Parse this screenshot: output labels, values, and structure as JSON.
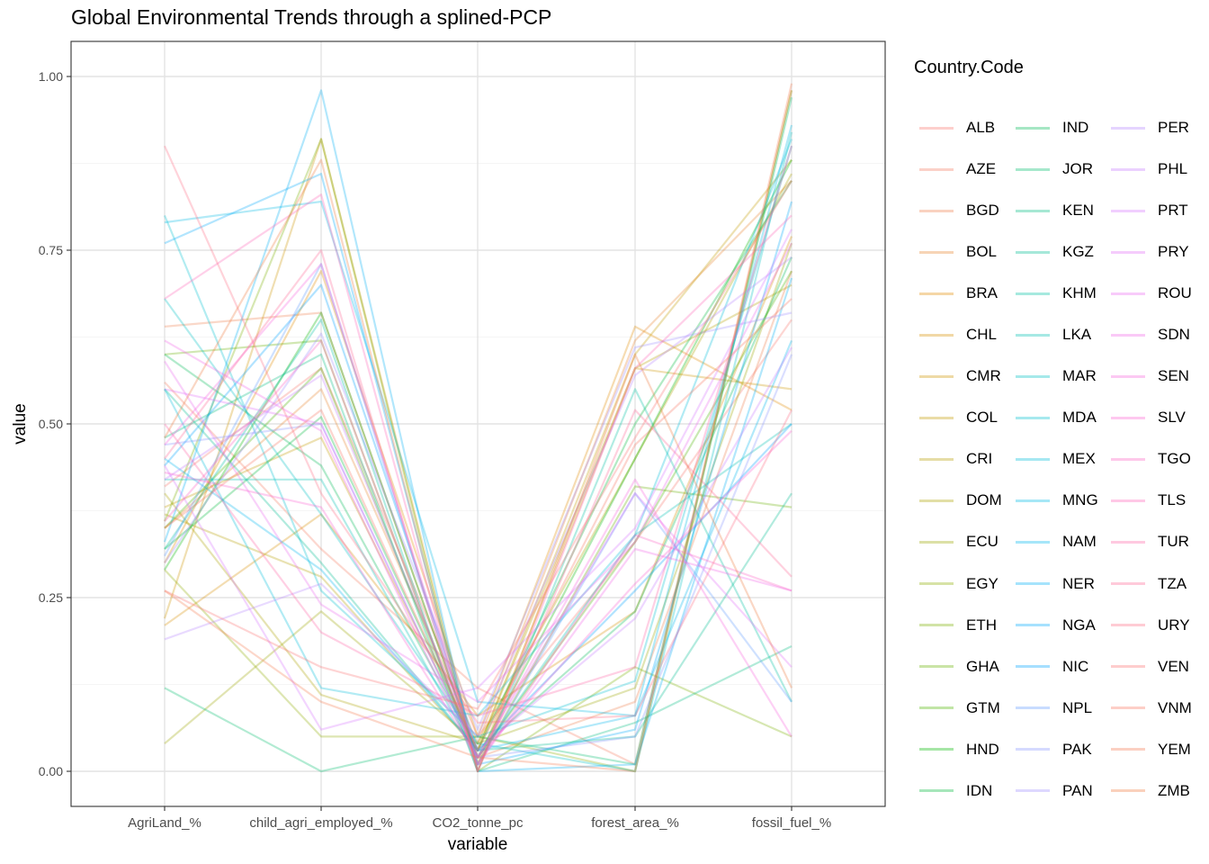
{
  "chart_data": {
    "type": "line",
    "title": "Global Environmental Trends through a splined-PCP",
    "xlabel": "variable",
    "ylabel": "value",
    "categories": [
      "AgriLand_%",
      "child_agri_employed_%",
      "CO2_tonne_pc",
      "forest_area_%",
      "fossil_fuel_%"
    ],
    "ylim": [
      0,
      1
    ],
    "yticks": [
      "0.00",
      "0.25",
      "0.50",
      "0.75",
      "1.00"
    ],
    "grid": true,
    "legend_position": "right",
    "legend_title": "Country.Code",
    "line_opacity": 0.3,
    "series": [
      {
        "name": "ALB",
        "color": "#F8766D",
        "values": [
          0.41,
          0.58,
          0.05,
          0.33,
          0.65
        ]
      },
      {
        "name": "AZE",
        "color": "#F47A61",
        "values": [
          0.56,
          0.32,
          0.12,
          0.01,
          0.98
        ]
      },
      {
        "name": "BGD",
        "color": "#EF7F4B",
        "values": [
          0.64,
          0.66,
          0.02,
          0.1,
          0.72
        ]
      },
      {
        "name": "BOL",
        "color": "#E8852F",
        "values": [
          0.35,
          0.55,
          0.04,
          0.62,
          0.85
        ]
      },
      {
        "name": "BRA",
        "color": "#E28A00",
        "values": [
          0.3,
          0.72,
          0.05,
          0.64,
          0.52
        ]
      },
      {
        "name": "CHL",
        "color": "#D89000",
        "values": [
          0.21,
          0.37,
          0.08,
          0.23,
          0.77
        ]
      },
      {
        "name": "CMR",
        "color": "#CD9600",
        "values": [
          0.22,
          0.91,
          0.01,
          0.58,
          0.55
        ]
      },
      {
        "name": "COL",
        "color": "#C29A00",
        "values": [
          0.38,
          0.48,
          0.03,
          0.6,
          0.88
        ]
      },
      {
        "name": "CRI",
        "color": "#B69F00",
        "values": [
          0.37,
          0.28,
          0.03,
          0.58,
          0.7
        ]
      },
      {
        "name": "DOM",
        "color": "#ABA300",
        "values": [
          0.4,
          0.11,
          0.04,
          0.45,
          0.86
        ]
      },
      {
        "name": "ECU",
        "color": "#9CA700",
        "values": [
          0.04,
          0.23,
          0.04,
          0.12,
          0.76
        ]
      },
      {
        "name": "EGY",
        "color": "#8DAB00",
        "values": [
          0.29,
          0.05,
          0.05,
          0.0,
          0.98
        ]
      },
      {
        "name": "ETH",
        "color": "#7CAE00",
        "values": [
          0.36,
          0.91,
          0.0,
          0.15,
          0.05
        ]
      },
      {
        "name": "GHA",
        "color": "#68B100",
        "values": [
          0.6,
          0.62,
          0.01,
          0.41,
          0.38
        ]
      },
      {
        "name": "GTM",
        "color": "#4CB400",
        "values": [
          0.35,
          0.58,
          0.02,
          0.33,
          0.72
        ]
      },
      {
        "name": "HND",
        "color": "#00B600",
        "values": [
          0.29,
          0.66,
          0.02,
          0.45,
          0.88
        ]
      },
      {
        "name": "IDN",
        "color": "#00B83A",
        "values": [
          0.32,
          0.51,
          0.03,
          0.5,
          0.85
        ]
      },
      {
        "name": "IND",
        "color": "#00BA55",
        "values": [
          0.6,
          0.44,
          0.03,
          0.23,
          0.74
        ]
      },
      {
        "name": "JOR",
        "color": "#00BC6C",
        "values": [
          0.12,
          0.0,
          0.05,
          0.01,
          0.97
        ]
      },
      {
        "name": "KEN",
        "color": "#00BD80",
        "values": [
          0.48,
          0.6,
          0.0,
          0.07,
          0.18
        ]
      },
      {
        "name": "KGZ",
        "color": "#00BE92",
        "values": [
          0.55,
          0.3,
          0.03,
          0.05,
          0.4
        ]
      },
      {
        "name": "KHM",
        "color": "#00BFA3",
        "values": [
          0.32,
          0.65,
          0.0,
          0.55,
          0.1
        ]
      },
      {
        "name": "LKA",
        "color": "#00C0B3",
        "values": [
          0.42,
          0.42,
          0.02,
          0.34,
          0.5
        ]
      },
      {
        "name": "MAR",
        "color": "#00C0C2",
        "values": [
          0.68,
          0.37,
          0.04,
          0.0,
          0.92
        ]
      },
      {
        "name": "MDA",
        "color": "#00BFCF",
        "values": [
          0.8,
          0.26,
          0.05,
          0.13,
          0.9
        ]
      },
      {
        "name": "MEX",
        "color": "#00BDDB",
        "values": [
          0.55,
          0.12,
          0.08,
          0.34,
          0.91
        ]
      },
      {
        "name": "MNG",
        "color": "#00BAE6",
        "values": [
          0.79,
          0.82,
          0.1,
          0.08,
          0.93
        ]
      },
      {
        "name": "NAM",
        "color": "#00B6EF",
        "values": [
          0.45,
          0.29,
          0.03,
          0.08,
          0.62
        ]
      },
      {
        "name": "NER",
        "color": "#00B0F6",
        "values": [
          0.33,
          0.98,
          0.0,
          0.01,
          0.71
        ]
      },
      {
        "name": "NGA",
        "color": "#00AAFD",
        "values": [
          0.76,
          0.86,
          0.01,
          0.06,
          0.82
        ]
      },
      {
        "name": "NIC",
        "color": "#00A3FF",
        "values": [
          0.44,
          0.7,
          0.03,
          0.26,
          0.5
        ]
      },
      {
        "name": "NPL",
        "color": "#619CFF",
        "values": [
          0.31,
          0.73,
          0.01,
          0.4,
          0.1
        ]
      },
      {
        "name": "PAK",
        "color": "#8795FF",
        "values": [
          0.47,
          0.5,
          0.02,
          0.05,
          0.6
        ]
      },
      {
        "name": "PAN",
        "color": "#A08EFF",
        "values": [
          0.3,
          0.63,
          0.06,
          0.61,
          0.66
        ]
      },
      {
        "name": "PER",
        "color": "#B584FF",
        "values": [
          0.19,
          0.27,
          0.05,
          0.57,
          0.74
        ]
      },
      {
        "name": "PHL",
        "color": "#C77CFF",
        "values": [
          0.42,
          0.57,
          0.03,
          0.22,
          0.61
        ]
      },
      {
        "name": "PRT",
        "color": "#D675FE",
        "values": [
          0.44,
          0.06,
          0.12,
          0.35,
          0.78
        ]
      },
      {
        "name": "PRY",
        "color": "#E26EF7",
        "values": [
          0.55,
          0.5,
          0.02,
          0.4,
          0.15
        ]
      },
      {
        "name": "ROU",
        "color": "#EB69F0",
        "values": [
          0.59,
          0.24,
          0.1,
          0.33,
          0.76
        ]
      },
      {
        "name": "SDN",
        "color": "#F265E7",
        "values": [
          0.62,
          0.49,
          0.01,
          0.32,
          0.26
        ]
      },
      {
        "name": "SEN",
        "color": "#F763DD",
        "values": [
          0.47,
          0.73,
          0.02,
          0.42,
          0.05
        ]
      },
      {
        "name": "SLV",
        "color": "#FB61D2",
        "values": [
          0.43,
          0.38,
          0.02,
          0.27,
          0.49
        ]
      },
      {
        "name": "TGO",
        "color": "#FD61C4",
        "values": [
          0.36,
          0.62,
          0.01,
          0.34,
          0.26
        ]
      },
      {
        "name": "TLS",
        "color": "#FF62B6",
        "values": [
          0.68,
          0.83,
          0.0,
          0.58,
          0.8
        ]
      },
      {
        "name": "TUR",
        "color": "#FF64A6",
        "values": [
          0.5,
          0.2,
          0.08,
          0.15,
          0.9
        ]
      },
      {
        "name": "TZA",
        "color": "#FF6895",
        "values": [
          0.45,
          0.75,
          0.0,
          0.52,
          0.28
        ]
      },
      {
        "name": "URY",
        "color": "#FF6C83",
        "values": [
          0.9,
          0.4,
          0.07,
          0.08,
          0.52
        ]
      },
      {
        "name": "VEN",
        "color": "#FC7171",
        "values": [
          0.26,
          0.15,
          0.09,
          0.48,
          0.85
        ]
      },
      {
        "name": "VNM",
        "color": "#F9755F",
        "values": [
          0.35,
          0.52,
          0.03,
          0.47,
          0.68
        ]
      },
      {
        "name": "YEM",
        "color": "#F4794F",
        "values": [
          0.26,
          0.1,
          0.02,
          0.0,
          0.99
        ]
      },
      {
        "name": "ZMB",
        "color": "#F07C40",
        "values": [
          0.48,
          0.88,
          0.0,
          0.6,
          0.12
        ]
      }
    ]
  }
}
